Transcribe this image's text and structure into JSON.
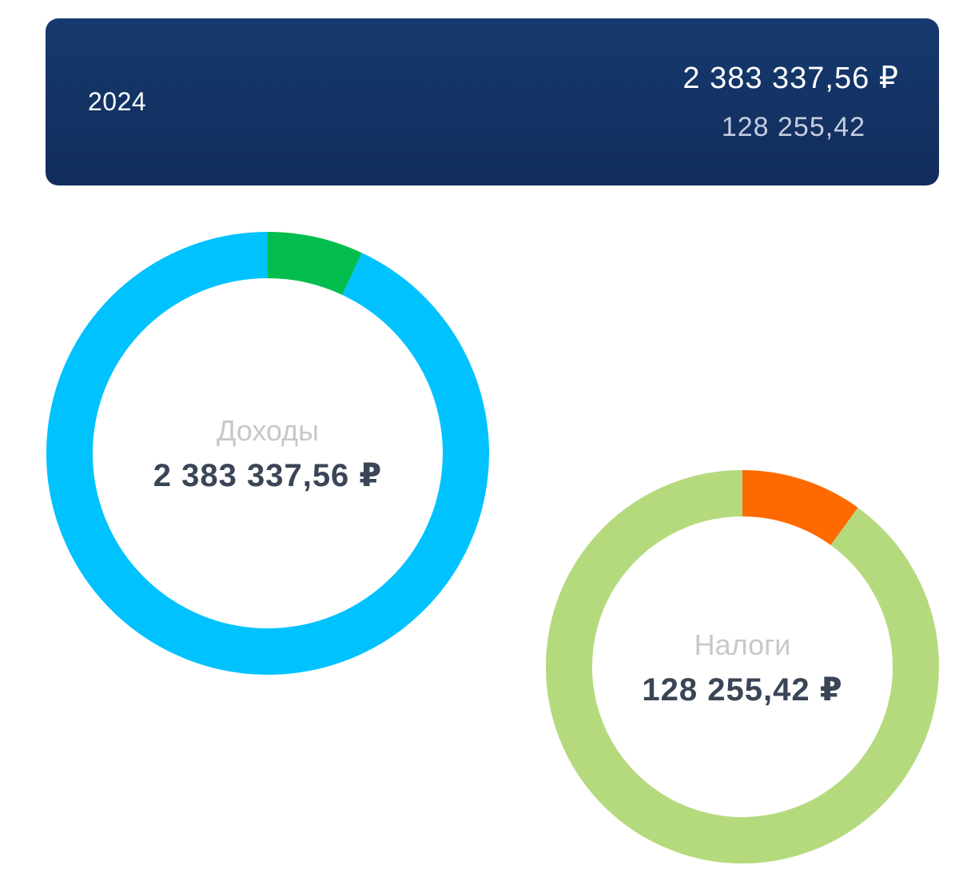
{
  "header": {
    "year": "2024",
    "total_income": "2 383 337,56 ₽",
    "total_tax": "128 255,42"
  },
  "chart_data": [
    {
      "type": "pie",
      "variant": "donut",
      "center_label": "Доходы",
      "center_value": "2 383 337,56 ₽",
      "slices": [
        {
          "value": 0.93,
          "color": "#00c2ff"
        },
        {
          "value": 0.07,
          "color": "#03bd4e"
        }
      ]
    },
    {
      "type": "pie",
      "variant": "donut",
      "center_label": "Налоги",
      "center_value": "128 255,42 ₽",
      "slices": [
        {
          "value": 0.9,
          "color": "#b5da7e"
        },
        {
          "value": 0.1,
          "color": "#ff6a00"
        }
      ]
    }
  ]
}
